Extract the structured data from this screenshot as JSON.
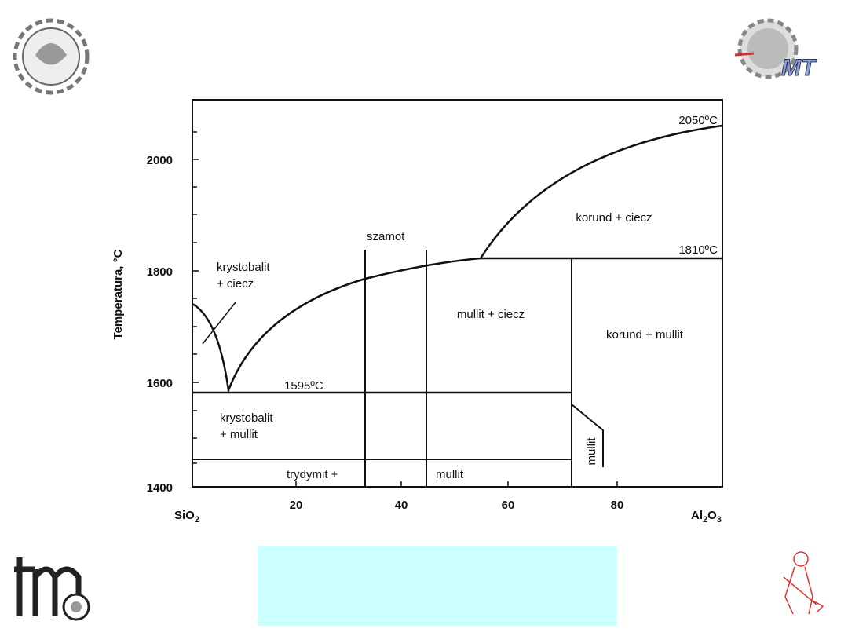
{
  "diagram": {
    "axis_label": "Temperatura, °C",
    "y_ticks": [
      "2000",
      "1800",
      "1600",
      "1400"
    ],
    "x_ticks": [
      "20",
      "40",
      "60",
      "80"
    ],
    "left_end": {
      "text": "SiO",
      "sub": "2"
    },
    "right_end": {
      "parts": [
        "Al",
        "2",
        "O",
        "3"
      ]
    },
    "temperatures": [
      "2050ºC",
      "1810ºC",
      "1595ºC"
    ],
    "regions": {
      "korund_ciecz": "korund + ciecz",
      "krystobalit_ciecz": [
        "krystobalit",
        "+ ciecz"
      ],
      "mullit_ciecz": "mullit + ciecz",
      "korund_mullit": "korund + mullit",
      "krystobalit_mullit": [
        "krystobalit",
        "+ mullit"
      ],
      "trydymit": "trydymit +",
      "mullit": "mullit",
      "mullit_narrow": "mullit"
    },
    "szamot": "szamot"
  }
}
